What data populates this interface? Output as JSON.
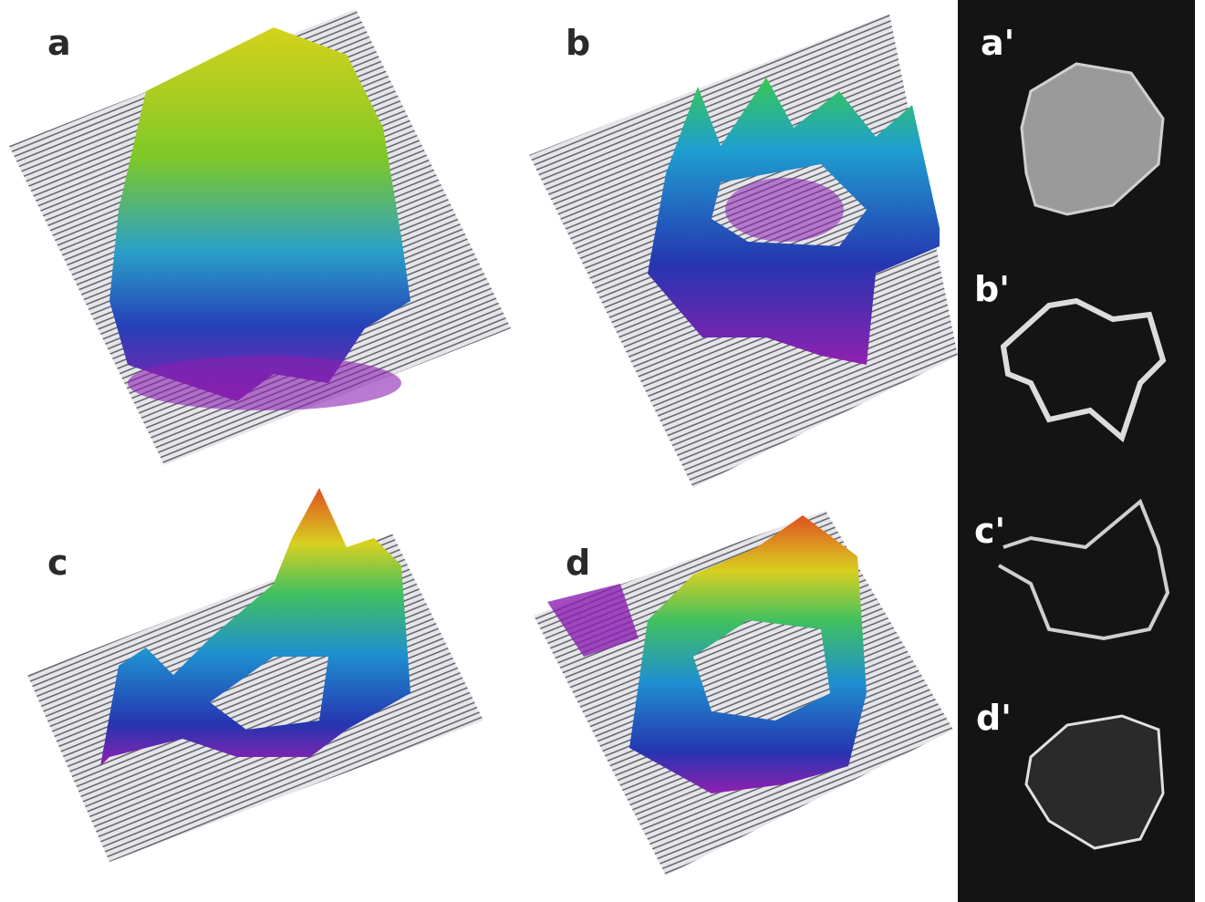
{
  "panels": [
    {
      "label": "a"
    },
    {
      "label": "b"
    },
    {
      "label": "c"
    },
    {
      "label": "d"
    }
  ],
  "insets": [
    {
      "label": "a'"
    },
    {
      "label": "b'"
    },
    {
      "label": "c'"
    },
    {
      "label": "d'"
    }
  ]
}
